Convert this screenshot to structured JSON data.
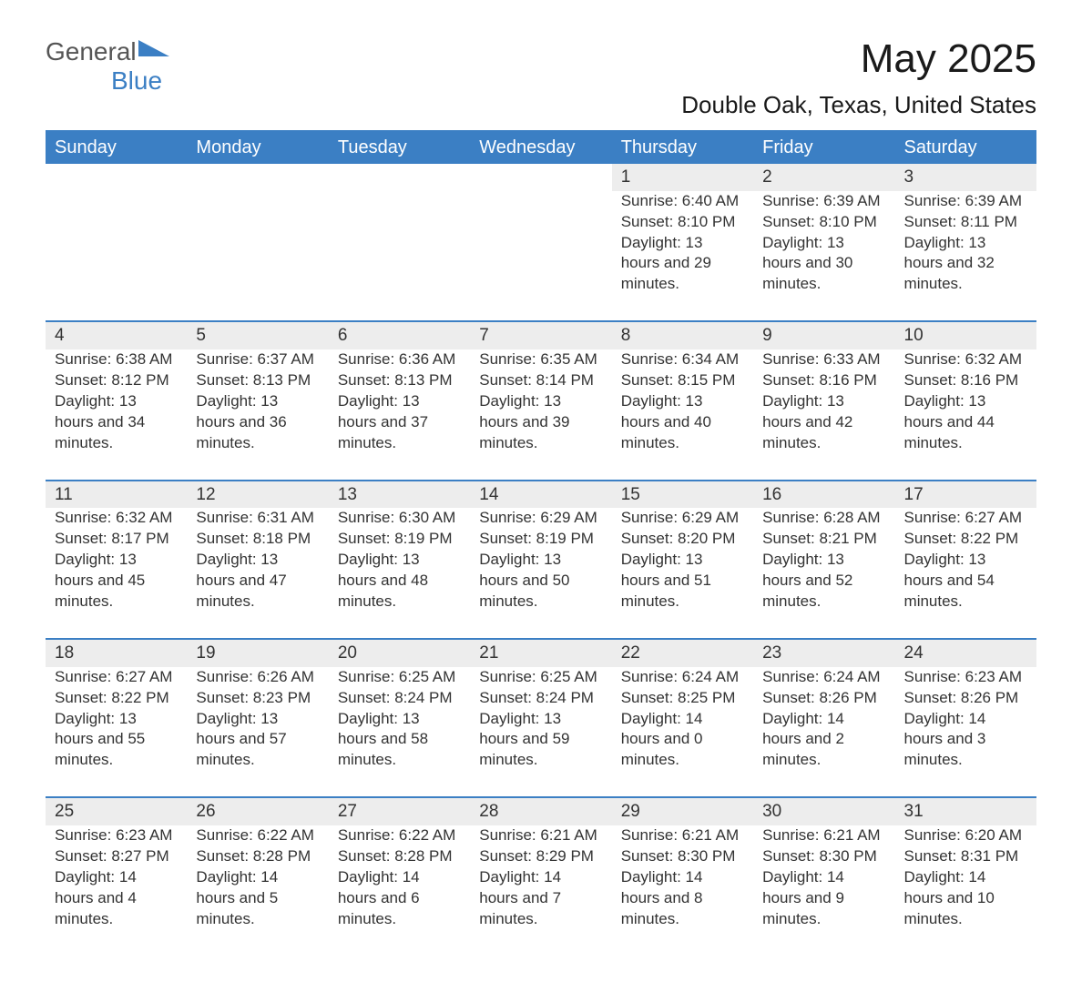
{
  "brand": {
    "main": "General",
    "sub": "Blue"
  },
  "title": "May 2025",
  "location": "Double Oak, Texas, United States",
  "colors": {
    "header_bg": "#3b7fc4",
    "header_text": "#ffffff",
    "daynum_bg": "#ededed",
    "row_border": "#3b7fc4",
    "body_text": "#333333",
    "page_bg": "#ffffff",
    "brand_gray": "#555555",
    "brand_blue": "#3b7fc4"
  },
  "layout": {
    "columns": 7,
    "weeks": 5,
    "header_fontsize": 20,
    "title_fontsize": 44,
    "location_fontsize": 26,
    "cell_fontsize": 17
  },
  "weekdays": [
    "Sunday",
    "Monday",
    "Tuesday",
    "Wednesday",
    "Thursday",
    "Friday",
    "Saturday"
  ],
  "weeks": [
    [
      null,
      null,
      null,
      null,
      {
        "n": "1",
        "sr": "Sunrise: 6:40 AM",
        "ss": "Sunset: 8:10 PM",
        "dl": "Daylight: 13 hours and 29 minutes."
      },
      {
        "n": "2",
        "sr": "Sunrise: 6:39 AM",
        "ss": "Sunset: 8:10 PM",
        "dl": "Daylight: 13 hours and 30 minutes."
      },
      {
        "n": "3",
        "sr": "Sunrise: 6:39 AM",
        "ss": "Sunset: 8:11 PM",
        "dl": "Daylight: 13 hours and 32 minutes."
      }
    ],
    [
      {
        "n": "4",
        "sr": "Sunrise: 6:38 AM",
        "ss": "Sunset: 8:12 PM",
        "dl": "Daylight: 13 hours and 34 minutes."
      },
      {
        "n": "5",
        "sr": "Sunrise: 6:37 AM",
        "ss": "Sunset: 8:13 PM",
        "dl": "Daylight: 13 hours and 36 minutes."
      },
      {
        "n": "6",
        "sr": "Sunrise: 6:36 AM",
        "ss": "Sunset: 8:13 PM",
        "dl": "Daylight: 13 hours and 37 minutes."
      },
      {
        "n": "7",
        "sr": "Sunrise: 6:35 AM",
        "ss": "Sunset: 8:14 PM",
        "dl": "Daylight: 13 hours and 39 minutes."
      },
      {
        "n": "8",
        "sr": "Sunrise: 6:34 AM",
        "ss": "Sunset: 8:15 PM",
        "dl": "Daylight: 13 hours and 40 minutes."
      },
      {
        "n": "9",
        "sr": "Sunrise: 6:33 AM",
        "ss": "Sunset: 8:16 PM",
        "dl": "Daylight: 13 hours and 42 minutes."
      },
      {
        "n": "10",
        "sr": "Sunrise: 6:32 AM",
        "ss": "Sunset: 8:16 PM",
        "dl": "Daylight: 13 hours and 44 minutes."
      }
    ],
    [
      {
        "n": "11",
        "sr": "Sunrise: 6:32 AM",
        "ss": "Sunset: 8:17 PM",
        "dl": "Daylight: 13 hours and 45 minutes."
      },
      {
        "n": "12",
        "sr": "Sunrise: 6:31 AM",
        "ss": "Sunset: 8:18 PM",
        "dl": "Daylight: 13 hours and 47 minutes."
      },
      {
        "n": "13",
        "sr": "Sunrise: 6:30 AM",
        "ss": "Sunset: 8:19 PM",
        "dl": "Daylight: 13 hours and 48 minutes."
      },
      {
        "n": "14",
        "sr": "Sunrise: 6:29 AM",
        "ss": "Sunset: 8:19 PM",
        "dl": "Daylight: 13 hours and 50 minutes."
      },
      {
        "n": "15",
        "sr": "Sunrise: 6:29 AM",
        "ss": "Sunset: 8:20 PM",
        "dl": "Daylight: 13 hours and 51 minutes."
      },
      {
        "n": "16",
        "sr": "Sunrise: 6:28 AM",
        "ss": "Sunset: 8:21 PM",
        "dl": "Daylight: 13 hours and 52 minutes."
      },
      {
        "n": "17",
        "sr": "Sunrise: 6:27 AM",
        "ss": "Sunset: 8:22 PM",
        "dl": "Daylight: 13 hours and 54 minutes."
      }
    ],
    [
      {
        "n": "18",
        "sr": "Sunrise: 6:27 AM",
        "ss": "Sunset: 8:22 PM",
        "dl": "Daylight: 13 hours and 55 minutes."
      },
      {
        "n": "19",
        "sr": "Sunrise: 6:26 AM",
        "ss": "Sunset: 8:23 PM",
        "dl": "Daylight: 13 hours and 57 minutes."
      },
      {
        "n": "20",
        "sr": "Sunrise: 6:25 AM",
        "ss": "Sunset: 8:24 PM",
        "dl": "Daylight: 13 hours and 58 minutes."
      },
      {
        "n": "21",
        "sr": "Sunrise: 6:25 AM",
        "ss": "Sunset: 8:24 PM",
        "dl": "Daylight: 13 hours and 59 minutes."
      },
      {
        "n": "22",
        "sr": "Sunrise: 6:24 AM",
        "ss": "Sunset: 8:25 PM",
        "dl": "Daylight: 14 hours and 0 minutes."
      },
      {
        "n": "23",
        "sr": "Sunrise: 6:24 AM",
        "ss": "Sunset: 8:26 PM",
        "dl": "Daylight: 14 hours and 2 minutes."
      },
      {
        "n": "24",
        "sr": "Sunrise: 6:23 AM",
        "ss": "Sunset: 8:26 PM",
        "dl": "Daylight: 14 hours and 3 minutes."
      }
    ],
    [
      {
        "n": "25",
        "sr": "Sunrise: 6:23 AM",
        "ss": "Sunset: 8:27 PM",
        "dl": "Daylight: 14 hours and 4 minutes."
      },
      {
        "n": "26",
        "sr": "Sunrise: 6:22 AM",
        "ss": "Sunset: 8:28 PM",
        "dl": "Daylight: 14 hours and 5 minutes."
      },
      {
        "n": "27",
        "sr": "Sunrise: 6:22 AM",
        "ss": "Sunset: 8:28 PM",
        "dl": "Daylight: 14 hours and 6 minutes."
      },
      {
        "n": "28",
        "sr": "Sunrise: 6:21 AM",
        "ss": "Sunset: 8:29 PM",
        "dl": "Daylight: 14 hours and 7 minutes."
      },
      {
        "n": "29",
        "sr": "Sunrise: 6:21 AM",
        "ss": "Sunset: 8:30 PM",
        "dl": "Daylight: 14 hours and 8 minutes."
      },
      {
        "n": "30",
        "sr": "Sunrise: 6:21 AM",
        "ss": "Sunset: 8:30 PM",
        "dl": "Daylight: 14 hours and 9 minutes."
      },
      {
        "n": "31",
        "sr": "Sunrise: 6:20 AM",
        "ss": "Sunset: 8:31 PM",
        "dl": "Daylight: 14 hours and 10 minutes."
      }
    ]
  ]
}
